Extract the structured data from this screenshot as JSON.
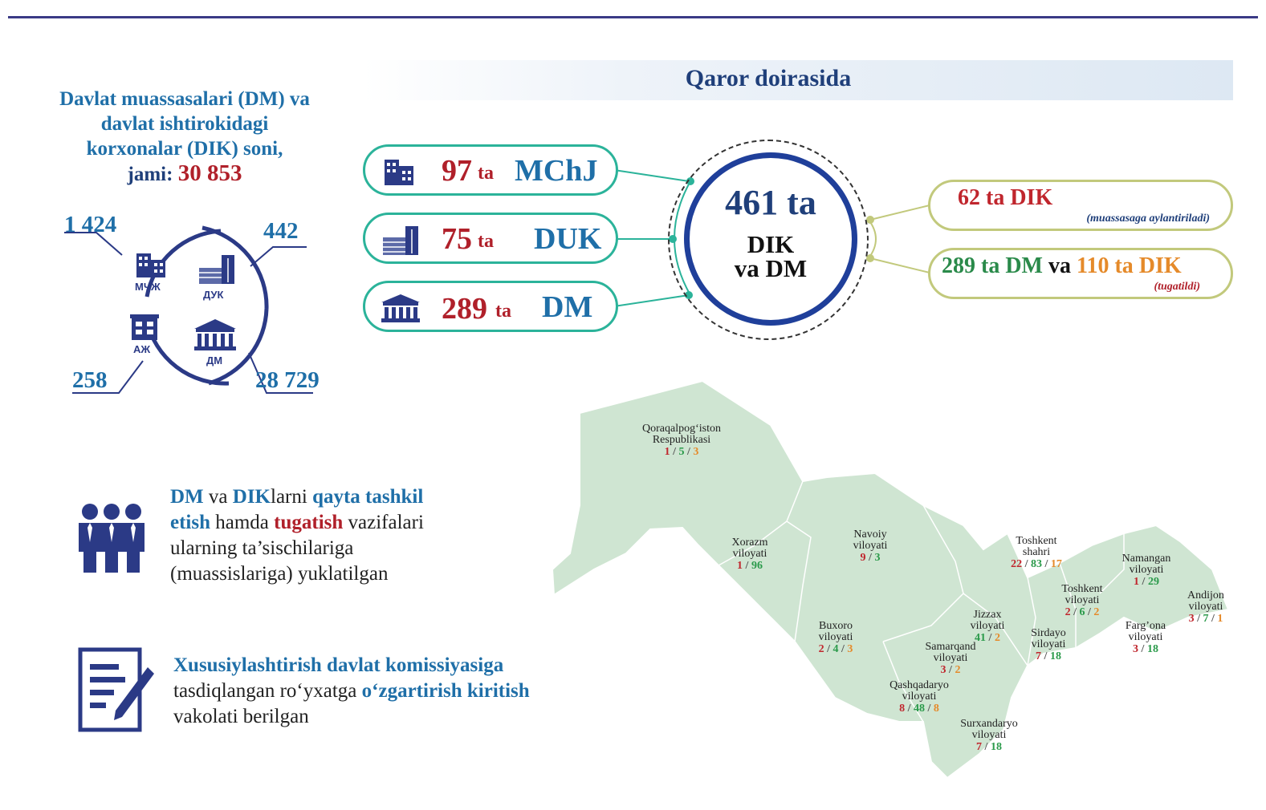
{
  "left_title": {
    "line1": "Davlat muassasalari (DM) va",
    "line2": "davlat ishtirokidagi",
    "line3": "korxonalar (DIK) soni,",
    "line4_prefix": "jami: ",
    "total": "30 853"
  },
  "circle_stats": {
    "mchj_count": "1 424",
    "duk_count": "442",
    "aj_count": "258",
    "dm_count": "28 729",
    "mchj_label": "МЧЖ",
    "duk_label": "ДУК",
    "aj_label": "АЖ",
    "dm_label": "ДМ"
  },
  "banner": {
    "title": "Qaror doirasida"
  },
  "pills": [
    {
      "value": "97",
      "unit": "ta",
      "tag": "MChJ",
      "icon": "office-building-icon"
    },
    {
      "value": "75",
      "unit": "ta",
      "tag": "DUK",
      "icon": "industrial-building-icon"
    },
    {
      "value": "289",
      "unit": "ta",
      "tag": "DM",
      "icon": "government-building-icon"
    }
  ],
  "center": {
    "value": "461 ta",
    "line1": "DIK",
    "line2": "va DM"
  },
  "right_pills": {
    "top": {
      "text": "62 ta DIK",
      "note": "(muassasaga aylantiriladi)"
    },
    "bottom": {
      "dm": "289 ta DM",
      "va": " va ",
      "dik": "110 ta DIK",
      "note": "(tugatildi)"
    }
  },
  "text1": {
    "w1": "DM",
    "w2": " va ",
    "w3": "DIK",
    "w4": "larni ",
    "w5": "qayta tashkil",
    "w6": "etish",
    "w7": " hamda ",
    "w8": "tugatish",
    "w9": " vazifalari",
    "line3": "ularning ta’sischilariga",
    "line4": "(muassislariga) yuklatilgan"
  },
  "text2": {
    "line1": "Xususiylashtirish davlat komissiyasiga",
    "line2a": "tasdiqlangan ro‘yxatga ",
    "line2b": "o‘zgartirish kiritish",
    "line3": "vakolati berilgan"
  },
  "regions": [
    {
      "n1": "Qoraqalpog‘iston",
      "n2": "Respublikasi",
      "v": [
        "1",
        "5",
        "3"
      ],
      "c": [
        "cr",
        "cg",
        "co"
      ]
    },
    {
      "n1": "Xorazm",
      "n2": "viloyati",
      "v": [
        "1",
        "96"
      ],
      "c": [
        "cr",
        "cg"
      ]
    },
    {
      "n1": "Navoiy",
      "n2": "viloyati",
      "v": [
        "9",
        "3"
      ],
      "c": [
        "cr",
        "cg"
      ]
    },
    {
      "n1": "Toshkent",
      "n2": "shahri",
      "v": [
        "22",
        "83",
        "17"
      ],
      "c": [
        "cr",
        "cg",
        "co"
      ]
    },
    {
      "n1": "Namangan",
      "n2": "viloyati",
      "v": [
        "1",
        "29"
      ],
      "c": [
        "cr",
        "cg"
      ]
    },
    {
      "n1": "Toshkent",
      "n2": "viloyati",
      "v": [
        "2",
        "6",
        "2"
      ],
      "c": [
        "cr",
        "cg",
        "co"
      ]
    },
    {
      "n1": "Andijon",
      "n2": "viloyati",
      "v": [
        "3",
        "7",
        "1"
      ],
      "c": [
        "cr",
        "cg",
        "co"
      ]
    },
    {
      "n1": "Jizzax",
      "n2": "viloyati",
      "v": [
        "41",
        "2"
      ],
      "c": [
        "cg",
        "co"
      ]
    },
    {
      "n1": "Sirdayo",
      "n2": "viloyati",
      "v": [
        "7",
        "18"
      ],
      "c": [
        "cr",
        "cg"
      ]
    },
    {
      "n1": "Farg’ona",
      "n2": "viloyati",
      "v": [
        "3",
        "18"
      ],
      "c": [
        "cr",
        "cg"
      ]
    },
    {
      "n1": "Buxoro",
      "n2": "viloyati",
      "v": [
        "2",
        "4",
        "3"
      ],
      "c": [
        "cr",
        "cg",
        "co"
      ]
    },
    {
      "n1": "Samarqand",
      "n2": "viloyati",
      "v": [
        "3",
        "2"
      ],
      "c": [
        "cr",
        "co"
      ]
    },
    {
      "n1": "Qashqadaryo",
      "n2": "viloyati",
      "v": [
        "8",
        "48",
        "8"
      ],
      "c": [
        "cr",
        "cg",
        "co"
      ]
    },
    {
      "n1": "Surxandaryo",
      "n2": "viloyati",
      "v": [
        "7",
        "18"
      ],
      "c": [
        "cr",
        "cg"
      ]
    }
  ],
  "colors": {
    "accent_blue": "#1f6fa8",
    "dark_blue": "#1f3f7a",
    "red": "#b0202a",
    "teal": "#2bb39a",
    "olive": "#c2c97c",
    "map_green": "#cfe5d2"
  }
}
